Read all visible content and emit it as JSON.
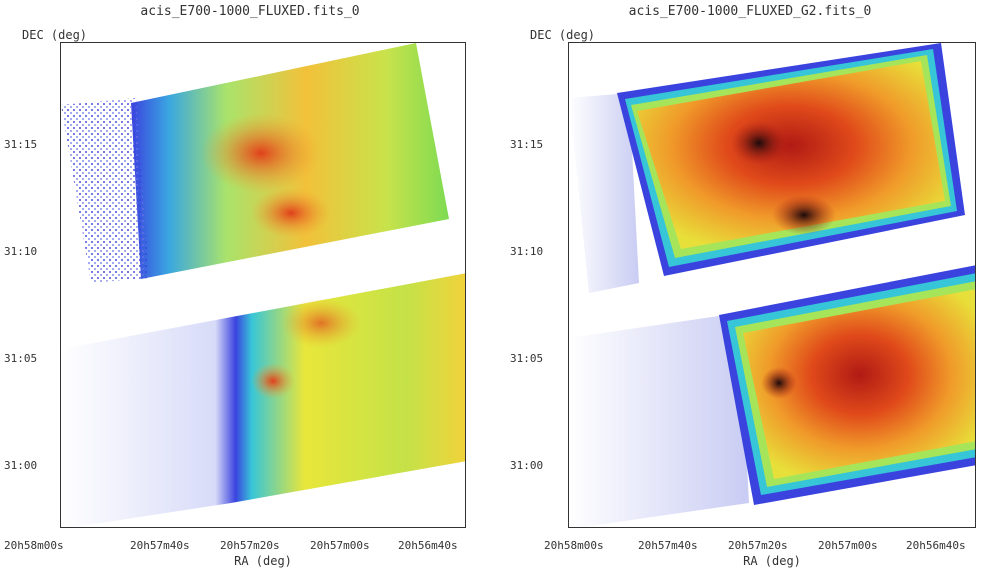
{
  "panels": [
    {
      "title": "acis_E700-1000_FLUXED.fits_0",
      "ylabel": "DEC (deg)",
      "xlabel": "RA (deg)",
      "yticks": [
        "31:15",
        "31:10",
        "31:05",
        "31:00"
      ],
      "xticks": [
        "20h58m00s",
        "20h57m40s",
        "20h57m20s",
        "20h57m00s",
        "20h56m40s"
      ]
    },
    {
      "title": "acis_E700-1000_FLUXED_G2.fits_0",
      "ylabel": "DEC (deg)",
      "xlabel": "RA (deg)",
      "yticks": [
        "31:15",
        "31:10",
        "31:05",
        "31:00"
      ],
      "xticks": [
        "20h58m00s",
        "20h57m40s",
        "20h57m20s",
        "20h57m00s",
        "20h56m40s"
      ]
    }
  ],
  "colors": {
    "low": "#4c55e6",
    "mid": "#34c6d8",
    "midhigh": "#e6e63a",
    "high": "#f08a2e",
    "peak": "#1a0d0d"
  }
}
